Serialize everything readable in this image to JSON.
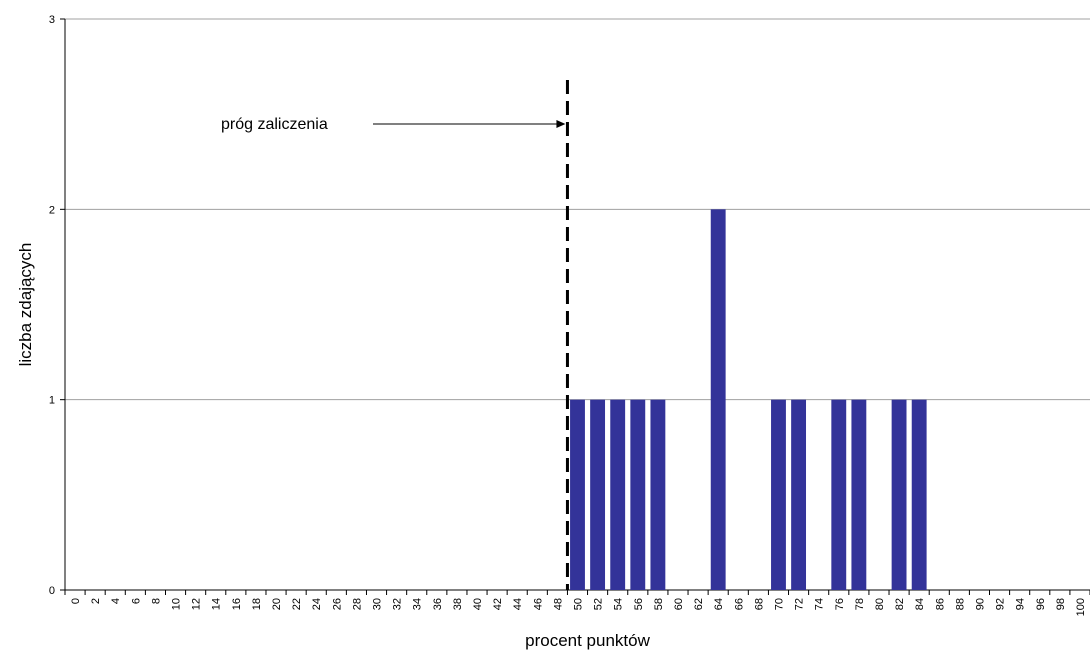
{
  "chart_data": {
    "type": "bar",
    "xlabel": "procent punktów",
    "ylabel": "liczba zdających",
    "ylim": [
      0,
      3
    ],
    "yticks": [
      0,
      1,
      2,
      3
    ],
    "grid": true,
    "categories": [
      "0",
      "2",
      "4",
      "6",
      "8",
      "10",
      "12",
      "14",
      "16",
      "18",
      "20",
      "22",
      "24",
      "26",
      "28",
      "30",
      "32",
      "34",
      "36",
      "38",
      "40",
      "42",
      "44",
      "46",
      "48",
      "50",
      "52",
      "54",
      "56",
      "58",
      "60",
      "62",
      "64",
      "66",
      "68",
      "70",
      "72",
      "74",
      "76",
      "78",
      "80",
      "82",
      "84",
      "86",
      "88",
      "90",
      "92",
      "94",
      "96",
      "98",
      "100"
    ],
    "values": [
      0,
      0,
      0,
      0,
      0,
      0,
      0,
      0,
      0,
      0,
      0,
      0,
      0,
      0,
      0,
      0,
      0,
      0,
      0,
      0,
      0,
      0,
      0,
      0,
      0,
      1,
      1,
      1,
      1,
      1,
      0,
      0,
      2,
      0,
      0,
      1,
      1,
      0,
      1,
      1,
      0,
      1,
      1,
      0,
      0,
      0,
      0,
      0,
      0,
      0,
      0
    ],
    "threshold": {
      "label": "próg zaliczenia",
      "x": 49
    },
    "bar_color": "#333399",
    "grid_color": "#a0a0a0"
  }
}
